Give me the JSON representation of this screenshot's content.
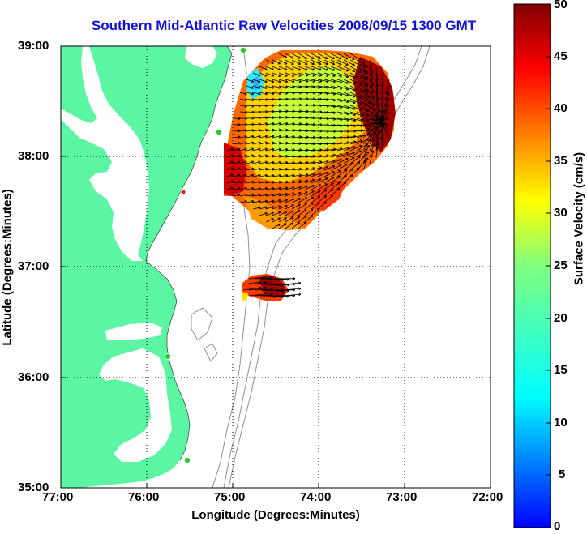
{
  "map": {
    "title": "Southern Mid-Atlantic Raw Velocities 2008/09/15 1300 GMT",
    "xlabel": "Longitude (Degrees:Minutes)",
    "ylabel": "Latitude (Degrees:Minutes)",
    "x_ticks": [
      "77:00",
      "76:00",
      "75:00",
      "74:00",
      "73:00",
      "72:00"
    ],
    "y_ticks": [
      "39:00",
      "38:00",
      "37:00",
      "36:00",
      "35:00"
    ],
    "land_color": "#5cf5a4",
    "bathymetry_color": "#909090",
    "grid": "dotted"
  },
  "colorbar": {
    "label": "Surface Velocity (cm/s)",
    "ticks": [
      "0",
      "5",
      "10",
      "15",
      "20",
      "25",
      "30",
      "35",
      "40",
      "45",
      "50"
    ],
    "range": [
      0,
      50
    ],
    "colormap": "jet"
  },
  "stations": {
    "active_color": "#22cc22",
    "inactive_color": "#dd2222",
    "count_active": 4,
    "count_inactive": 1
  }
}
